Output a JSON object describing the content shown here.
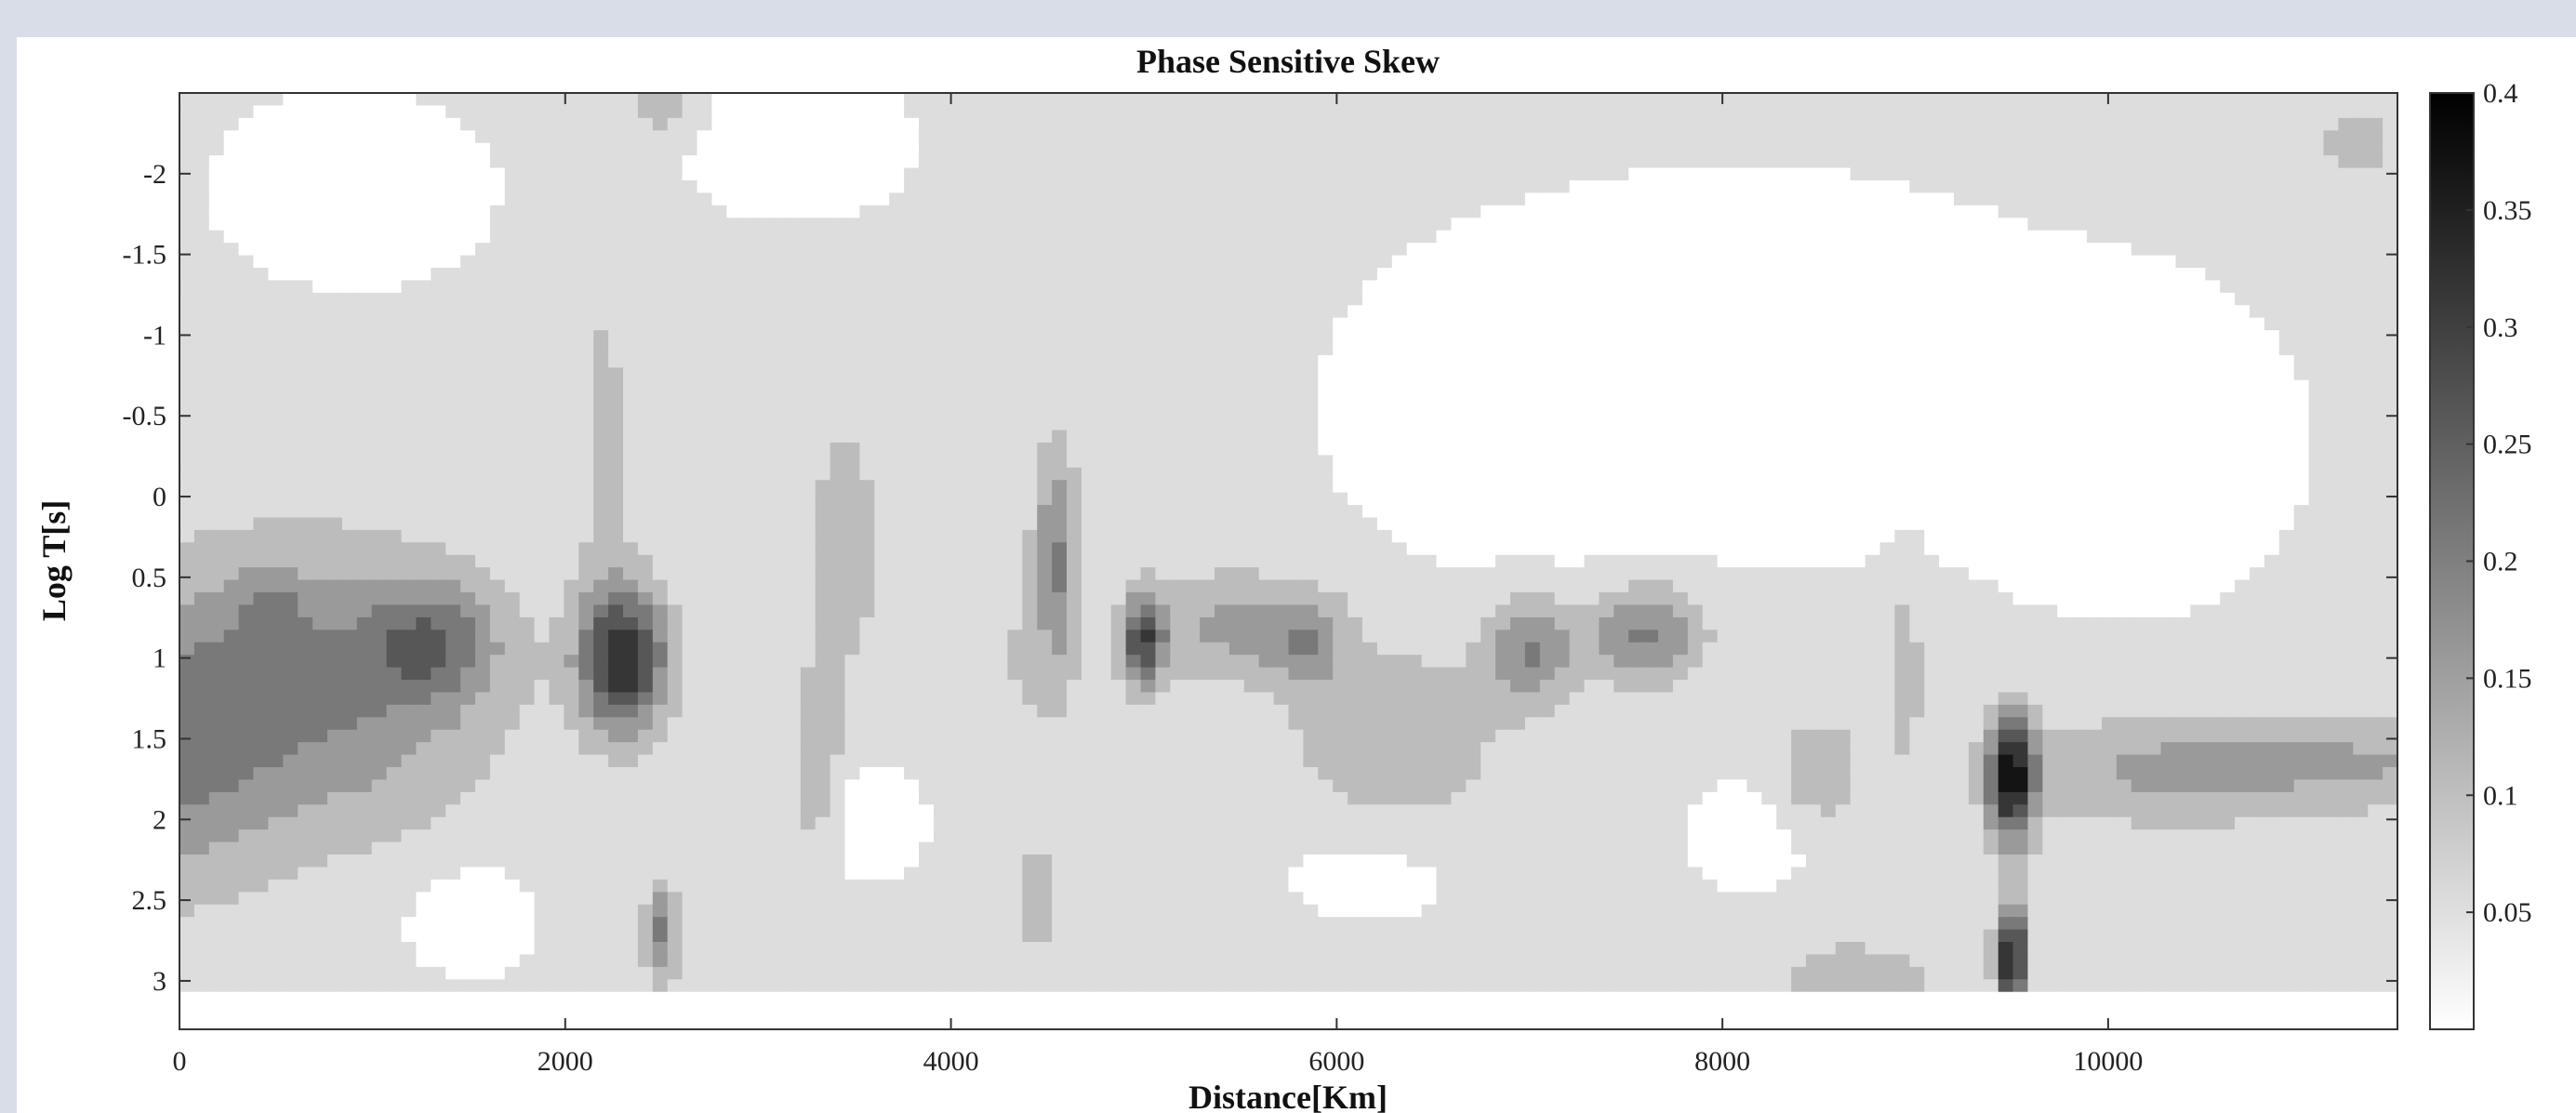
{
  "chart_data": {
    "type": "heatmap",
    "title": "Phase Sensitive Skew",
    "xlabel": "Distance[Km]",
    "ylabel": "Log T[s]",
    "xlim": [
      0,
      11500
    ],
    "ylim": [
      -2.5,
      3.3
    ],
    "y_reversed": true,
    "x_ticks": [
      0,
      2000,
      4000,
      6000,
      8000,
      10000
    ],
    "y_ticks": [
      -2,
      -1.5,
      -1,
      -0.5,
      0,
      0.5,
      1,
      1.5,
      2,
      2.5,
      3
    ],
    "x_tick_labels": [
      "0",
      "2000",
      "4000",
      "6000",
      "8000",
      "10000"
    ],
    "y_tick_labels": [
      "-2",
      "-1.5",
      "-1",
      "-0.5",
      "0",
      "0.5",
      "1",
      "1.5",
      "2",
      "2.5",
      "3"
    ],
    "colorbar": {
      "range": [
        0,
        0.4
      ],
      "ticks": [
        0.05,
        0.1,
        0.15,
        0.2,
        0.25,
        0.3,
        0.35,
        0.4
      ],
      "tick_labels": [
        "0.05",
        "0.1",
        "0.15",
        "0.2",
        "0.25",
        "0.3",
        "0.35",
        "0.4"
      ],
      "colormap": "gray-reversed",
      "low_color": "#ffffff",
      "high_color": "#000000"
    },
    "background_value": 0.06,
    "features": [
      {
        "x": 700,
        "y": 1.2,
        "sx": 900,
        "sy": 0.9,
        "v": 0.15
      },
      {
        "x": 0,
        "y": 1.6,
        "sx": 450,
        "sy": 0.9,
        "v": 0.1
      },
      {
        "x": 480,
        "y": 0.72,
        "sx": 160,
        "sy": 0.25,
        "v": 0.06
      },
      {
        "x": 1320,
        "y": 0.9,
        "sx": 320,
        "sy": 0.35,
        "v": 0.13
      },
      {
        "x": 1500,
        "y": 2.6,
        "sx": 300,
        "sy": 0.3,
        "v": -0.06
      },
      {
        "x": 2300,
        "y": 1.0,
        "sx": 230,
        "sy": 0.45,
        "v": 0.28
      },
      {
        "x": 2500,
        "y": 2.7,
        "sx": 90,
        "sy": 0.3,
        "v": 0.15
      },
      {
        "x": 2200,
        "y": -0.4,
        "sx": 130,
        "sy": 1.0,
        "v": 0.06
      },
      {
        "x": 3300,
        "y": 1.7,
        "sx": 120,
        "sy": 0.6,
        "v": 0.1
      },
      {
        "x": 3450,
        "y": 0.3,
        "sx": 200,
        "sy": 0.9,
        "v": 0.07
      },
      {
        "x": 4350,
        "y": 1.0,
        "sx": 350,
        "sy": 0.9,
        "v": 0.04
      },
      {
        "x": 4450,
        "y": 2.5,
        "sx": 160,
        "sy": 0.4,
        "v": 0.06
      },
      {
        "x": 4550,
        "y": 0.35,
        "sx": 110,
        "sy": 0.7,
        "v": 0.13
      },
      {
        "x": 5000,
        "y": 0.9,
        "sx": 110,
        "sy": 0.3,
        "v": 0.22
      },
      {
        "x": 5450,
        "y": 0.8,
        "sx": 420,
        "sy": 0.35,
        "v": 0.1
      },
      {
        "x": 5850,
        "y": 0.9,
        "sx": 200,
        "sy": 0.3,
        "v": 0.1
      },
      {
        "x": 6300,
        "y": 1.5,
        "sx": 550,
        "sy": 0.6,
        "v": 0.08
      },
      {
        "x": 7000,
        "y": 0.95,
        "sx": 220,
        "sy": 0.35,
        "v": 0.14
      },
      {
        "x": 7600,
        "y": 0.85,
        "sx": 300,
        "sy": 0.3,
        "v": 0.15
      },
      {
        "x": 8500,
        "y": 1.7,
        "sx": 230,
        "sy": 0.35,
        "v": 0.08
      },
      {
        "x": 8950,
        "y": 1.1,
        "sx": 90,
        "sy": 0.6,
        "v": 0.07
      },
      {
        "x": 9500,
        "y": 1.75,
        "sx": 120,
        "sy": 0.4,
        "v": 0.3
      },
      {
        "x": 9500,
        "y": 2.85,
        "sx": 80,
        "sy": 0.3,
        "v": 0.32
      },
      {
        "x": 10300,
        "y": 1.7,
        "sx": 800,
        "sy": 0.35,
        "v": 0.1
      },
      {
        "x": 11400,
        "y": 1.65,
        "sx": 700,
        "sy": 0.3,
        "v": 0.08
      },
      {
        "x": 8700,
        "y": 3.0,
        "sx": 400,
        "sy": 0.25,
        "v": 0.08
      },
      {
        "x": 8100,
        "y": -0.8,
        "sx": 1400,
        "sy": 0.9,
        "v": -0.07
      },
      {
        "x": 10100,
        "y": -0.3,
        "sx": 700,
        "sy": 0.8,
        "v": -0.06
      },
      {
        "x": 6900,
        "y": -0.4,
        "sx": 650,
        "sy": 0.7,
        "v": -0.05
      },
      {
        "x": 900,
        "y": -1.9,
        "sx": 600,
        "sy": 0.5,
        "v": -0.05
      },
      {
        "x": 3200,
        "y": -2.2,
        "sx": 500,
        "sy": 0.4,
        "v": -0.05
      },
      {
        "x": 2500,
        "y": -2.45,
        "sx": 180,
        "sy": 0.2,
        "v": 0.09
      },
      {
        "x": 11300,
        "y": -2.2,
        "sx": 250,
        "sy": 0.25,
        "v": 0.06
      },
      {
        "x": 3500,
        "y": 2.0,
        "sx": 350,
        "sy": 0.35,
        "v": -0.04
      },
      {
        "x": 6200,
        "y": 2.3,
        "sx": 500,
        "sy": 0.35,
        "v": -0.03
      },
      {
        "x": 8150,
        "y": 2.1,
        "sx": 300,
        "sy": 0.3,
        "v": -0.04
      }
    ]
  }
}
